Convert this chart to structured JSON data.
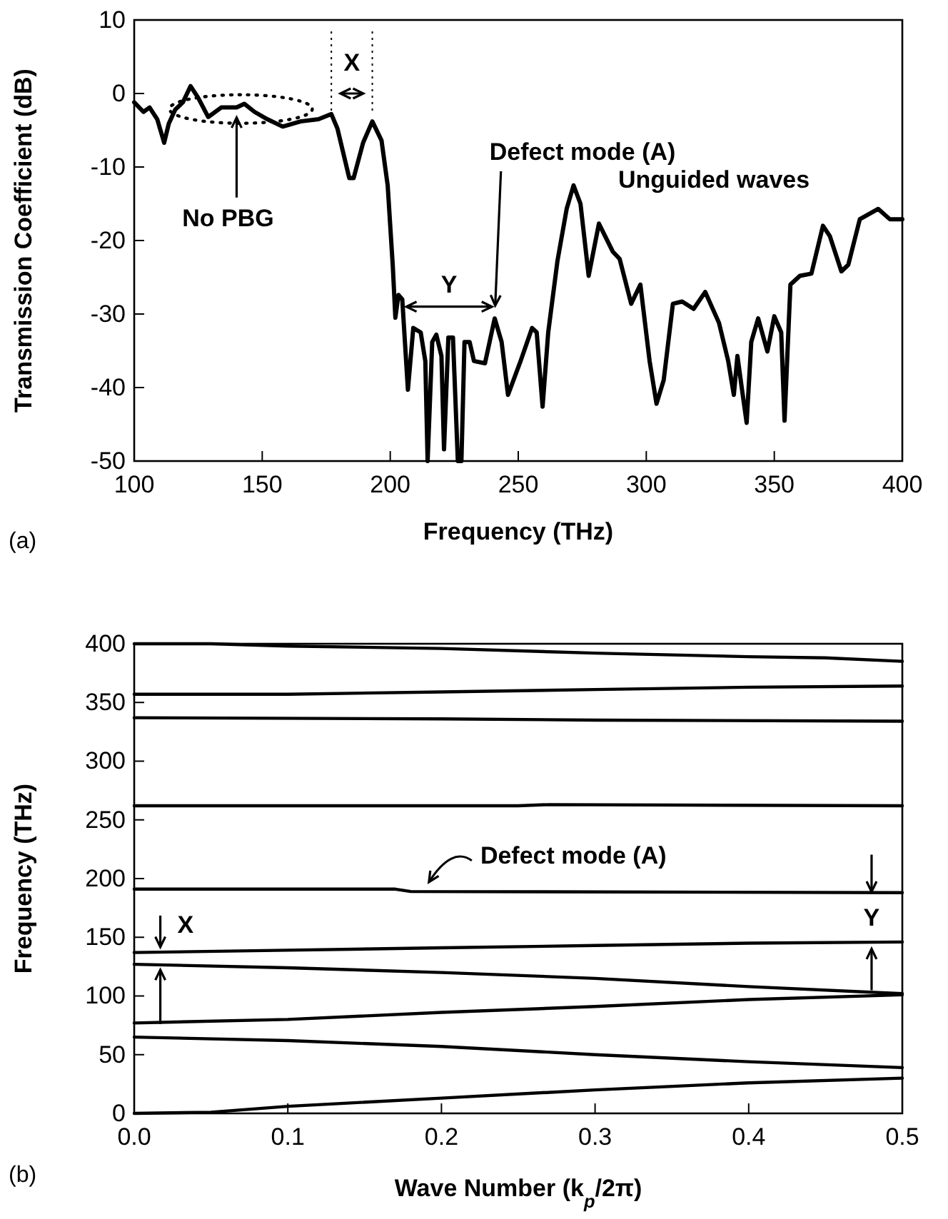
{
  "chart_data": [
    {
      "type": "line",
      "xlabel": "Frequency (THz)",
      "ylabel": "Transmission Coefficient (dB)",
      "xlim": [
        100,
        400
      ],
      "ylim": [
        -50,
        10
      ],
      "xticks": [
        100,
        150,
        200,
        250,
        300,
        350,
        400
      ],
      "yticks": [
        -50,
        -40,
        -30,
        -20,
        -10,
        0,
        10
      ],
      "grid": false,
      "marker": "none",
      "line_style": "solid",
      "series": [
        {
          "color": "#000000",
          "x": [
            100,
            103.6,
            106,
            109,
            111.7,
            113.5,
            116,
            119,
            122,
            125,
            128.9,
            134,
            140,
            143,
            147,
            152,
            158,
            165,
            172,
            177,
            179.4,
            184,
            185.7,
            189.4,
            193,
            196.6,
            199,
            201,
            202,
            203.2,
            204.7,
            206.9,
            209,
            211.9,
            213.7,
            214.6,
            216.4,
            218,
            220,
            221,
            222.7,
            224.5,
            226.4,
            227.8,
            229,
            231,
            232.7,
            237,
            240.8,
            243.5,
            246,
            250.9,
            255.4,
            257.2,
            259.5,
            261.7,
            265.3,
            268.9,
            271.6,
            274.3,
            277.5,
            281.5,
            286.9,
            289.6,
            294.1,
            297.7,
            301.3,
            304,
            306.8,
            310.4,
            314,
            318.5,
            323,
            328.4,
            332,
            334.2,
            335.6,
            337.4,
            339.2,
            341,
            343.7,
            347.3,
            350,
            352.7,
            354,
            356.3,
            360,
            364.5,
            369,
            371.7,
            376.2,
            378.9,
            383.4,
            390.6,
            395.1,
            400
          ],
          "values": [
            -1.2,
            -2.5,
            -1.9,
            -3.5,
            -6.7,
            -4.1,
            -2.2,
            -1.2,
            1.0,
            -0.6,
            -3.2,
            -1.9,
            -1.9,
            -1.4,
            -2.5,
            -3.5,
            -4.5,
            -3.8,
            -3.5,
            -2.8,
            -4.8,
            -11.5,
            -11.5,
            -6.7,
            -3.8,
            -6.4,
            -12.5,
            -23.5,
            -30.5,
            -27.4,
            -28,
            -40.3,
            -31.9,
            -32.5,
            -36.4,
            -50,
            -33.8,
            -32.8,
            -35.7,
            -48.4,
            -33.2,
            -33.2,
            -50,
            -50,
            -33.8,
            -33.8,
            -36.4,
            -36.7,
            -30.6,
            -33.8,
            -41,
            -36.4,
            -31.9,
            -32.5,
            -42.6,
            -32.5,
            -22.8,
            -15.7,
            -12.5,
            -15,
            -24.8,
            -17.7,
            -21.5,
            -22.5,
            -28.6,
            -26,
            -36.4,
            -42.2,
            -39,
            -28.6,
            -28.3,
            -29.3,
            -27,
            -31.2,
            -36.4,
            -41,
            -35.7,
            -40.3,
            -44.8,
            -33.8,
            -30.6,
            -35.1,
            -30.3,
            -32.5,
            -44.5,
            -26,
            -24.8,
            -24.5,
            -18,
            -19.4,
            -24.2,
            -23.3,
            -17.1,
            -15.7,
            -17.1,
            -17.1
          ]
        }
      ],
      "ref_lines": [
        {
          "axis": "x",
          "value": 177,
          "label": null,
          "line_style": "dotted"
        },
        {
          "axis": "x",
          "value": 193,
          "label": null,
          "line_style": "dotted"
        }
      ],
      "annotations": [
        "X",
        {
          "text": "No PBG",
          "x": 140,
          "y": -2.5
        },
        "Y",
        {
          "text": "Defect mode (A)",
          "x": 241,
          "y": -30
        },
        "Unguided waves",
        "(a)"
      ]
    },
    {
      "type": "line",
      "xlabel": "Wave Number (k$_{p}$/2π)",
      "ylabel": "Frequency (THz)",
      "xlim": [
        0,
        0.5
      ],
      "ylim": [
        0,
        400
      ],
      "xticks": [
        {
          "value": 0,
          "label": "0.0"
        },
        {
          "value": 0.1,
          "label": "0.1"
        },
        {
          "value": 0.2,
          "label": "0.2"
        },
        {
          "value": 0.3,
          "label": "0.3"
        },
        {
          "value": 0.4,
          "label": "0.4"
        },
        {
          "value": 0.5,
          "label": "0.5"
        }
      ],
      "yticks": [
        0,
        50,
        100,
        150,
        200,
        250,
        300,
        350,
        400
      ],
      "grid": false,
      "marker": "none",
      "line_style": "solid",
      "series": [
        {
          "color": "#000000",
          "x": [
            0,
            0.05,
            0.1,
            0.2,
            0.3,
            0.4,
            0.45,
            0.5
          ],
          "values": [
            400,
            400,
            398,
            396,
            392,
            389,
            388,
            385
          ]
        },
        {
          "color": "#000000",
          "x": [
            0,
            0.1,
            0.2,
            0.3,
            0.4,
            0.5
          ],
          "values": [
            357,
            357,
            359,
            361,
            363,
            364
          ]
        },
        {
          "color": "#000000",
          "x": [
            0,
            0.2,
            0.3,
            0.5
          ],
          "values": [
            337,
            336,
            335,
            334
          ]
        },
        {
          "color": "#000000",
          "x": [
            0,
            0.25,
            0.27,
            0.5
          ],
          "values": [
            262,
            262,
            263,
            262
          ]
        },
        {
          "color": "#000000",
          "x": [
            0,
            0.17,
            0.18,
            0.5
          ],
          "values": [
            191,
            191,
            189,
            188
          ]
        },
        {
          "color": "#000000",
          "x": [
            0,
            0.1,
            0.2,
            0.3,
            0.4,
            0.5
          ],
          "values": [
            137,
            139,
            141,
            143,
            145,
            146
          ]
        },
        {
          "color": "#000000",
          "x": [
            0,
            0.1,
            0.2,
            0.3,
            0.4,
            0.5
          ],
          "values": [
            127,
            124,
            120,
            115,
            108,
            102
          ]
        },
        {
          "color": "#000000",
          "x": [
            0,
            0.1,
            0.2,
            0.3,
            0.4,
            0.5
          ],
          "values": [
            77,
            80,
            86,
            91,
            97,
            101
          ]
        },
        {
          "color": "#000000",
          "x": [
            0,
            0.1,
            0.2,
            0.3,
            0.4,
            0.5
          ],
          "values": [
            65,
            62,
            57,
            50,
            44,
            39
          ]
        },
        {
          "color": "#000000",
          "x": [
            0,
            0.05,
            0.1,
            0.2,
            0.3,
            0.4,
            0.5
          ],
          "values": [
            0,
            1,
            6,
            13,
            20,
            26,
            30
          ]
        }
      ],
      "annotations": [
        {
          "text": "Defect mode (A)",
          "x": 0.19,
          "y": 191
        },
        {
          "text": "X",
          "x": 0.017,
          "y": 132
        },
        {
          "text": "Y",
          "x": 0.48,
          "y": 145
        },
        "(b)"
      ]
    }
  ]
}
